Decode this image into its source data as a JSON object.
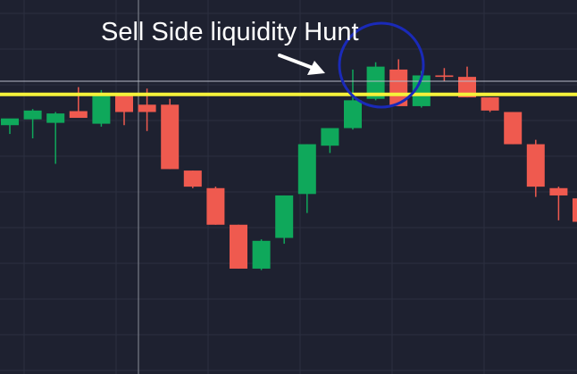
{
  "chart_data": {
    "type": "candlestick",
    "title": "",
    "xlabel": "",
    "ylabel": "",
    "grid": true,
    "ylim": [
      0,
      100
    ],
    "colors": {
      "background": "#1e2130",
      "grid": "#2c3040",
      "bullish": "#0fa85b",
      "bearish": "#ef5a4f",
      "level_line": "#f5f23a",
      "reference_line": "#b8bcc8",
      "crosshair": "#8a8e99",
      "annotation_circle": "#1a2ab8",
      "annotation_text": "#ffffff",
      "annotation_arrow": "#ffffff"
    },
    "candles": [
      {
        "open": 67.0,
        "high": 69.0,
        "low": 64.0,
        "close": 69.3
      },
      {
        "open": 69.0,
        "high": 72.5,
        "low": 62.5,
        "close": 72.0
      },
      {
        "open": 67.8,
        "high": 71.5,
        "low": 53.8,
        "close": 71.0
      },
      {
        "open": 71.8,
        "high": 80.0,
        "low": 70.5,
        "close": 69.5
      },
      {
        "open": 67.5,
        "high": 79.0,
        "low": 66.5,
        "close": 77.0
      },
      {
        "open": 77.0,
        "high": 78.0,
        "low": 67.0,
        "close": 71.5
      },
      {
        "open": 74.0,
        "high": 79.5,
        "low": 65.0,
        "close": 71.5
      },
      {
        "open": 74.0,
        "high": 76.0,
        "low": 52.0,
        "close": 52.0
      },
      {
        "open": 51.5,
        "high": 51.5,
        "low": 45.5,
        "close": 46.0
      },
      {
        "open": 45.5,
        "high": 46.0,
        "low": 33.0,
        "close": 33.0
      },
      {
        "open": 33.0,
        "high": 33.0,
        "low": 18.0,
        "close": 18.0
      },
      {
        "open": 18.0,
        "high": 28.0,
        "low": 17.5,
        "close": 27.5
      },
      {
        "open": 28.5,
        "high": 43.0,
        "low": 26.5,
        "close": 43.0
      },
      {
        "open": 43.5,
        "high": 60.5,
        "low": 37.0,
        "close": 60.5
      },
      {
        "open": 60.0,
        "high": 65.0,
        "low": 57.5,
        "close": 66.0
      },
      {
        "open": 66.0,
        "high": 86.0,
        "low": 65.5,
        "close": 75.5
      },
      {
        "open": 76.0,
        "high": 88.5,
        "low": 75.5,
        "close": 87.0
      },
      {
        "open": 86.0,
        "high": 89.5,
        "low": 73.5,
        "close": 73.5
      },
      {
        "open": 73.5,
        "high": 85.5,
        "low": 73.0,
        "close": 84.0
      },
      {
        "open": 84.0,
        "high": 86.5,
        "low": 82.0,
        "close": 83.5
      },
      {
        "open": 83.5,
        "high": 87.0,
        "low": 76.5,
        "close": 76.5
      },
      {
        "open": 76.5,
        "high": 76.5,
        "low": 71.5,
        "close": 72.0
      },
      {
        "open": 71.5,
        "high": 71.5,
        "low": 60.5,
        "close": 60.5
      },
      {
        "open": 60.5,
        "high": 62.0,
        "low": 42.5,
        "close": 46.0
      },
      {
        "open": 45.5,
        "high": 46.0,
        "low": 34.5,
        "close": 43.0
      },
      {
        "open": 42.0,
        "high": 42.5,
        "low": 33.5,
        "close": 34.0
      }
    ],
    "levels": [
      {
        "name": "yellow-level",
        "value": 77.5
      },
      {
        "name": "reference-line",
        "value": 82.0
      }
    ],
    "annotation": {
      "label": "Sell Side liquidity Hunt"
    }
  }
}
